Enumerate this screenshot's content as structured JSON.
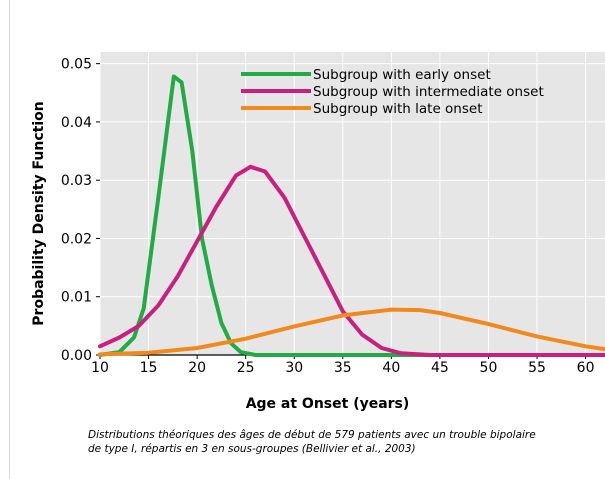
{
  "chart_data": {
    "type": "line",
    "xlabel": "Age at Onset (years)",
    "ylabel": "Probability Density Function",
    "xlim": [
      10,
      62
    ],
    "ylim": [
      0,
      0.052
    ],
    "xticks": [
      10,
      15,
      20,
      25,
      30,
      35,
      40,
      45,
      50,
      55,
      60
    ],
    "yticks": [
      0.0,
      0.01,
      0.02,
      0.03,
      0.04,
      0.05
    ],
    "ytick_labels": [
      "0.00",
      "0.01",
      "0.02",
      "0.03",
      "0.04",
      "0.05"
    ],
    "grid": true,
    "legend_position": "top-right",
    "series": [
      {
        "name": "Subgroup with early onset",
        "color": "#22aa44",
        "points": [
          [
            10,
            0.0
          ],
          [
            12,
            0.0005
          ],
          [
            13.5,
            0.003
          ],
          [
            14.5,
            0.008
          ],
          [
            16,
            0.027
          ],
          [
            17,
            0.04
          ],
          [
            17.6,
            0.0478
          ],
          [
            18.4,
            0.0468
          ],
          [
            19.5,
            0.035
          ],
          [
            20.5,
            0.02
          ],
          [
            21.5,
            0.012
          ],
          [
            22.5,
            0.0055
          ],
          [
            23.5,
            0.002
          ],
          [
            24.5,
            0.0005
          ],
          [
            26,
            0.0
          ],
          [
            30,
            0.0
          ],
          [
            40,
            0.0
          ],
          [
            50,
            0.0
          ],
          [
            62,
            0.0
          ]
        ]
      },
      {
        "name": "Subgroup with intermediate onset",
        "color": "#c8207e",
        "points": [
          [
            10,
            0.0015
          ],
          [
            12,
            0.003
          ],
          [
            14,
            0.005
          ],
          [
            16,
            0.0085
          ],
          [
            18,
            0.0135
          ],
          [
            20,
            0.0195
          ],
          [
            22,
            0.0255
          ],
          [
            24,
            0.0308
          ],
          [
            25.5,
            0.0323
          ],
          [
            27,
            0.0315
          ],
          [
            29,
            0.027
          ],
          [
            31,
            0.0205
          ],
          [
            33,
            0.014
          ],
          [
            35,
            0.0075
          ],
          [
            37,
            0.0035
          ],
          [
            39,
            0.0012
          ],
          [
            41,
            0.0003
          ],
          [
            44,
            0.0
          ],
          [
            50,
            0.0
          ],
          [
            62,
            0.0
          ]
        ]
      },
      {
        "name": "Subgroup with late onset",
        "color": "#f08a1e",
        "points": [
          [
            10,
            0.0001
          ],
          [
            15,
            0.0004
          ],
          [
            20,
            0.0012
          ],
          [
            25,
            0.0028
          ],
          [
            30,
            0.0049
          ],
          [
            35,
            0.0068
          ],
          [
            40,
            0.0078
          ],
          [
            43,
            0.0077
          ],
          [
            45,
            0.0072
          ],
          [
            50,
            0.0053
          ],
          [
            55,
            0.0032
          ],
          [
            60,
            0.0015
          ],
          [
            62,
            0.001
          ]
        ]
      }
    ]
  },
  "caption": {
    "line1": "Distributions théoriques des âges de début de 579 patients avec un trouble bipolaire",
    "line2": "de type I, répartis en 3 en sous-groupes (Bellivier et al., 2003)"
  }
}
